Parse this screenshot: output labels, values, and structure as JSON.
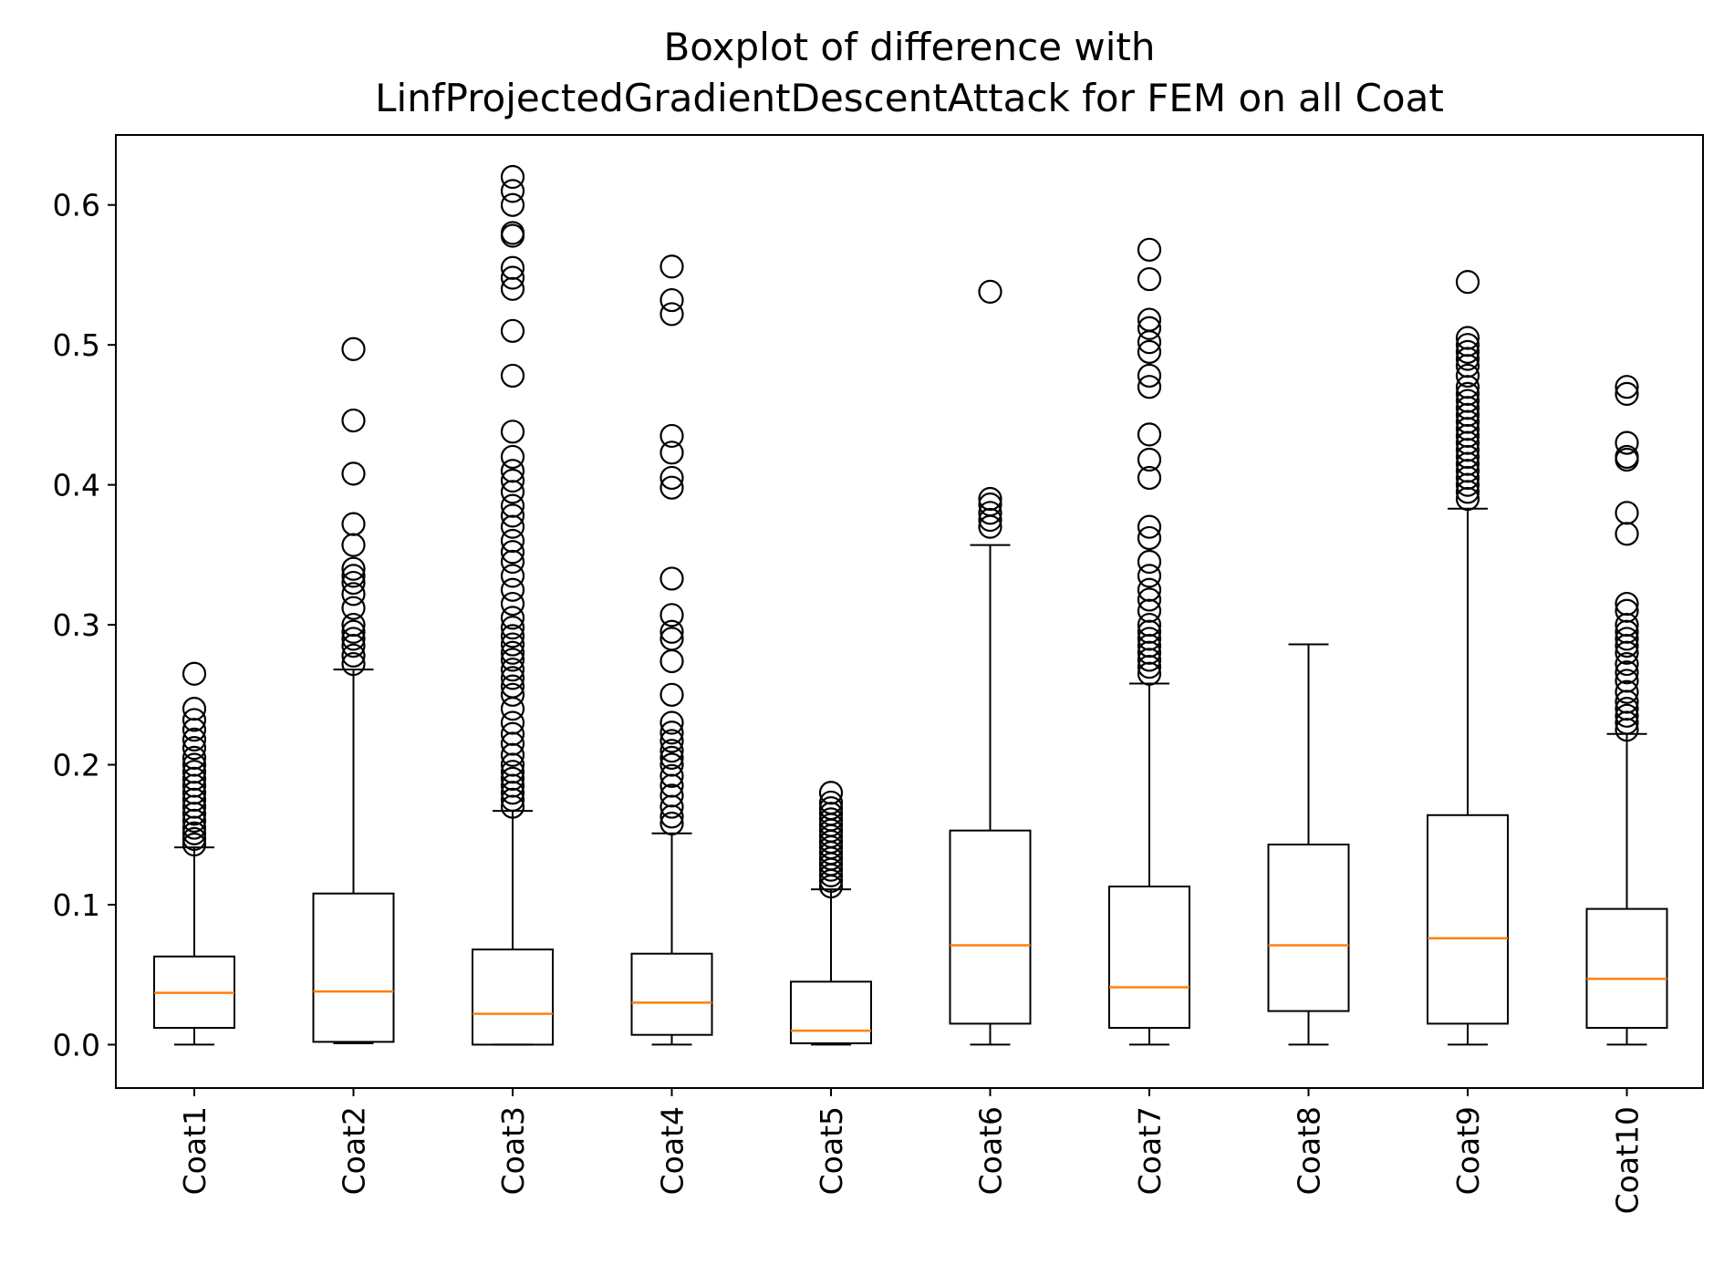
{
  "chart_data": {
    "type": "box",
    "title_lines": [
      "Boxplot of difference with",
      "LinfProjectedGradientDescentAttack for FEM on all Coat"
    ],
    "xlabel": "",
    "ylabel": "",
    "ylim": [
      -0.031,
      0.65
    ],
    "yticks": [
      0.0,
      0.1,
      0.2,
      0.3,
      0.4,
      0.5,
      0.6
    ],
    "ytick_labels": [
      "0.0",
      "0.1",
      "0.2",
      "0.3",
      "0.4",
      "0.5",
      "0.6"
    ],
    "grid": false,
    "colors": {
      "box": "#000000",
      "median": "#ff7f0e",
      "flier": "#000000"
    },
    "categories": [
      "Coat1",
      "Coat2",
      "Coat3",
      "Coat4",
      "Coat5",
      "Coat6",
      "Coat7",
      "Coat8",
      "Coat9",
      "Coat10"
    ],
    "boxes": [
      {
        "name": "Coat1",
        "whisker_low": 0.0,
        "q1": 0.012,
        "median": 0.037,
        "q3": 0.063,
        "whisker_high": 0.141,
        "fliers": [
          0.143,
          0.147,
          0.151,
          0.155,
          0.16,
          0.165,
          0.17,
          0.175,
          0.18,
          0.185,
          0.19,
          0.195,
          0.2,
          0.205,
          0.212,
          0.218,
          0.225,
          0.232,
          0.24,
          0.265
        ]
      },
      {
        "name": "Coat2",
        "whisker_low": 0.001,
        "q1": 0.002,
        "median": 0.038,
        "q3": 0.108,
        "whisker_high": 0.268,
        "fliers": [
          0.272,
          0.278,
          0.285,
          0.29,
          0.295,
          0.3,
          0.312,
          0.322,
          0.33,
          0.335,
          0.34,
          0.357,
          0.372,
          0.408,
          0.446,
          0.497
        ]
      },
      {
        "name": "Coat3",
        "whisker_low": 0.0,
        "q1": 0.0,
        "median": 0.022,
        "q3": 0.068,
        "whisker_high": 0.167,
        "fliers": [
          0.17,
          0.175,
          0.18,
          0.185,
          0.19,
          0.195,
          0.2,
          0.207,
          0.215,
          0.222,
          0.23,
          0.24,
          0.25,
          0.256,
          0.262,
          0.268,
          0.275,
          0.28,
          0.286,
          0.292,
          0.298,
          0.305,
          0.315,
          0.325,
          0.335,
          0.345,
          0.352,
          0.36,
          0.37,
          0.378,
          0.385,
          0.395,
          0.403,
          0.41,
          0.42,
          0.438,
          0.478,
          0.51,
          0.54,
          0.548,
          0.555,
          0.578,
          0.58,
          0.6,
          0.61,
          0.62
        ]
      },
      {
        "name": "Coat4",
        "whisker_low": 0.0,
        "q1": 0.007,
        "median": 0.03,
        "q3": 0.065,
        "whisker_high": 0.151,
        "fliers": [
          0.158,
          0.163,
          0.17,
          0.178,
          0.185,
          0.192,
          0.2,
          0.205,
          0.21,
          0.217,
          0.223,
          0.23,
          0.25,
          0.274,
          0.29,
          0.295,
          0.307,
          0.333,
          0.398,
          0.405,
          0.423,
          0.435,
          0.522,
          0.532,
          0.556
        ]
      },
      {
        "name": "Coat5",
        "whisker_low": 0.0,
        "q1": 0.001,
        "median": 0.01,
        "q3": 0.045,
        "whisker_high": 0.111,
        "fliers": [
          0.113,
          0.117,
          0.121,
          0.125,
          0.129,
          0.133,
          0.137,
          0.141,
          0.145,
          0.149,
          0.153,
          0.157,
          0.161,
          0.165,
          0.169,
          0.173,
          0.18
        ]
      },
      {
        "name": "Coat6",
        "whisker_low": 0.0,
        "q1": 0.015,
        "median": 0.071,
        "q3": 0.153,
        "whisker_high": 0.357,
        "fliers": [
          0.37,
          0.375,
          0.38,
          0.386,
          0.39,
          0.538
        ]
      },
      {
        "name": "Coat7",
        "whisker_low": 0.0,
        "q1": 0.012,
        "median": 0.041,
        "q3": 0.113,
        "whisker_high": 0.258,
        "fliers": [
          0.265,
          0.27,
          0.275,
          0.28,
          0.285,
          0.29,
          0.295,
          0.3,
          0.31,
          0.318,
          0.325,
          0.335,
          0.345,
          0.362,
          0.37,
          0.405,
          0.418,
          0.436,
          0.47,
          0.478,
          0.495,
          0.502,
          0.512,
          0.518,
          0.547,
          0.568
        ]
      },
      {
        "name": "Coat8",
        "whisker_low": 0.0,
        "q1": 0.024,
        "median": 0.071,
        "q3": 0.143,
        "whisker_high": 0.286,
        "fliers": []
      },
      {
        "name": "Coat9",
        "whisker_low": 0.0,
        "q1": 0.015,
        "median": 0.076,
        "q3": 0.164,
        "whisker_high": 0.383,
        "fliers": [
          0.39,
          0.395,
          0.4,
          0.405,
          0.41,
          0.415,
          0.42,
          0.425,
          0.43,
          0.435,
          0.44,
          0.445,
          0.45,
          0.455,
          0.46,
          0.465,
          0.47,
          0.478,
          0.485,
          0.49,
          0.495,
          0.5,
          0.505,
          0.545
        ]
      },
      {
        "name": "Coat10",
        "whisker_low": 0.0,
        "q1": 0.012,
        "median": 0.047,
        "q3": 0.097,
        "whisker_high": 0.222,
        "fliers": [
          0.225,
          0.23,
          0.235,
          0.24,
          0.245,
          0.252,
          0.26,
          0.266,
          0.272,
          0.28,
          0.285,
          0.29,
          0.295,
          0.3,
          0.31,
          0.315,
          0.365,
          0.38,
          0.418,
          0.42,
          0.43,
          0.465,
          0.47
        ]
      }
    ]
  }
}
